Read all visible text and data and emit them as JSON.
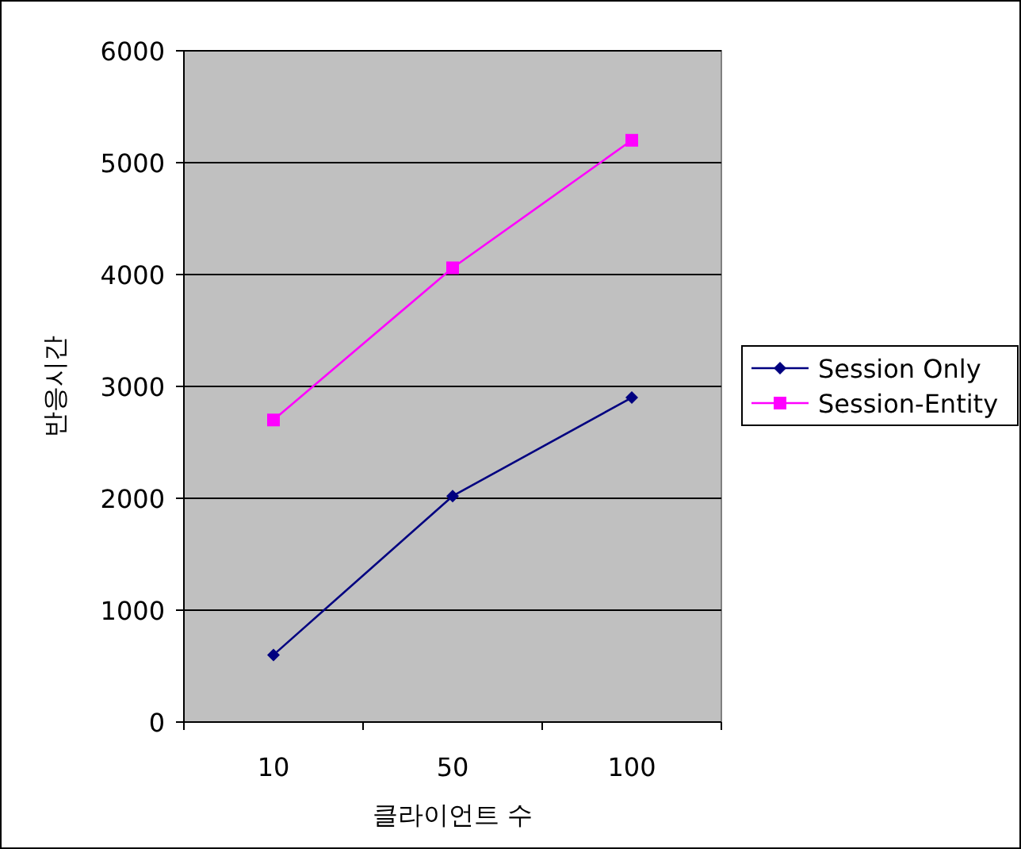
{
  "chart_data": {
    "type": "line",
    "xlabel": "클라이언트 수",
    "ylabel": "반응시간",
    "categories": [
      "10",
      "50",
      "100"
    ],
    "series": [
      {
        "name": "Session Only",
        "color": "#000080",
        "marker": "diamond",
        "values": [
          600,
          2020,
          2900
        ]
      },
      {
        "name": "Session-Entity",
        "color": "#ff00ff",
        "marker": "square",
        "values": [
          2700,
          4060,
          5200
        ]
      }
    ],
    "ylim": [
      0,
      6000
    ],
    "yticks": [
      0,
      1000,
      2000,
      3000,
      4000,
      5000,
      6000
    ],
    "grid": "y",
    "legend": "right"
  }
}
